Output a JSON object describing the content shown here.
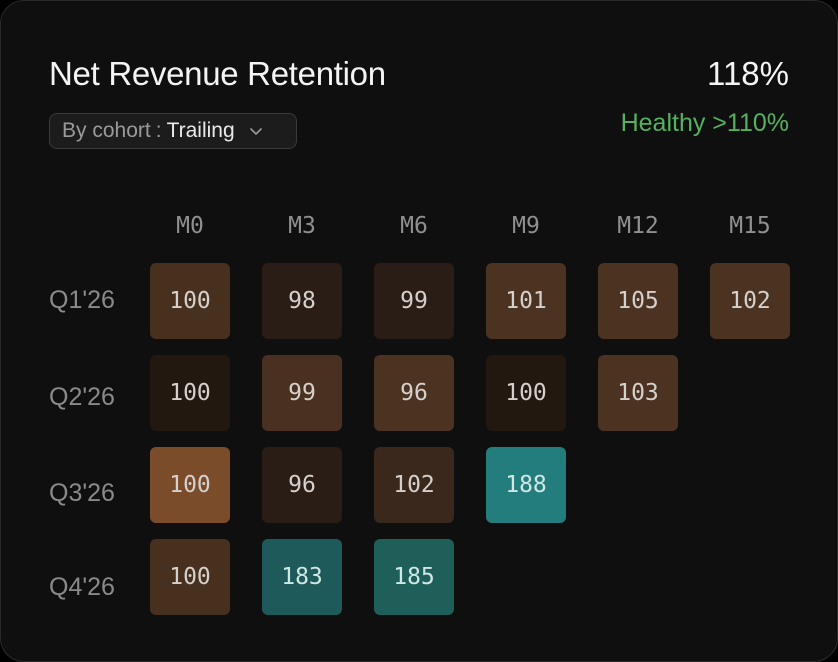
{
  "header": {
    "title": "Net Revenue Retention",
    "metric": "118%",
    "status": "Healthy >110%",
    "status_color": "#55b060"
  },
  "filter": {
    "label": "By cohort",
    "separator": ":",
    "value": "Trailing",
    "icon": "chevron-down-icon"
  },
  "chart_data": {
    "type": "heatmap",
    "columns": [
      "M0",
      "M3",
      "M6",
      "M9",
      "M12",
      "M15"
    ],
    "rows": [
      "Q1'26",
      "Q2'26",
      "Q3'26",
      "Q4'26"
    ],
    "values": [
      [
        100,
        98,
        99,
        101,
        105,
        102
      ],
      [
        100,
        99,
        96,
        100,
        103,
        null
      ],
      [
        100,
        96,
        102,
        188,
        null,
        null
      ],
      [
        100,
        183,
        185,
        null,
        null,
        null
      ]
    ],
    "cell_colors": [
      [
        "#48301f",
        "#2a1d16",
        "#2a1d16",
        "#4c3221",
        "#4c3221",
        "#4c3221"
      ],
      [
        "#23180f",
        "#4a3020",
        "#4c3221",
        "#23180f",
        "#4c3221",
        null
      ],
      [
        "#7a4c2a",
        "#2a1d16",
        "#3a281c",
        "#237d7c",
        null,
        null
      ],
      [
        "#48301f",
        "#1d5a59",
        "#1f5f5a",
        null,
        null,
        null
      ]
    ]
  }
}
